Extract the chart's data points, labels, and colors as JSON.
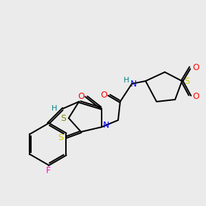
{
  "background_color": "#ebebeb",
  "bond_color": "#000000",
  "atom_colors": {
    "N": "#0000ff",
    "O": "#ff0000",
    "S": "#cccc00",
    "S_ring": "#808000",
    "F": "#ff00cc",
    "H": "#008080",
    "C": "#000000"
  },
  "figsize": [
    3.0,
    3.0
  ],
  "dpi": 100
}
